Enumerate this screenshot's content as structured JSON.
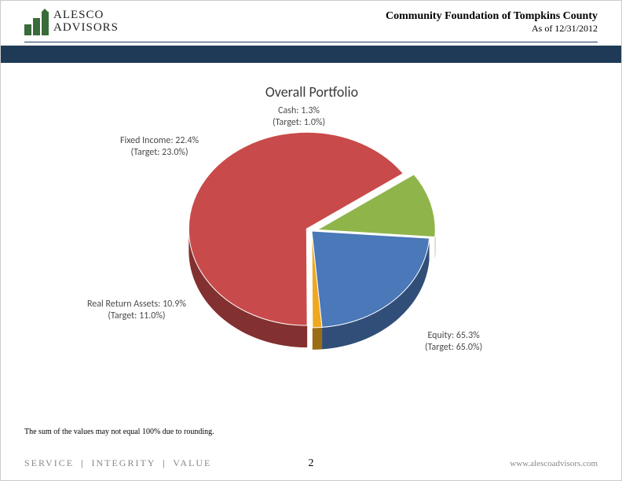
{
  "header": {
    "logo_line1": "ALESCO",
    "logo_line2": "ADVISORS",
    "org": "Community Foundation of Tompkins County",
    "asof": "As of 12/31/2012"
  },
  "chart": {
    "type": "pie",
    "title": "Overall Portfolio",
    "title_fontsize": 18,
    "title_color": "#3a3a3a",
    "label_fontsize": 12,
    "label_color": "#4a4a4a",
    "background_color": "#ffffff",
    "slices": [
      {
        "name": "Cash",
        "value": 1.3,
        "target": 1.0,
        "color": "#f0a820",
        "label_line1": "Cash: 1.3%",
        "label_line2": "(Target: 1.0%)"
      },
      {
        "name": "Equity",
        "value": 65.3,
        "target": 65.0,
        "color": "#c94a4a",
        "label_line1": "Equity: 65.3%",
        "label_line2": "(Target: 65.0%)"
      },
      {
        "name": "Real Return Assets",
        "value": 10.9,
        "target": 11.0,
        "color": "#8fb54a",
        "label_line1": "Real Return Assets: 10.9%",
        "label_line2": "(Target: 11.0%)"
      },
      {
        "name": "Fixed Income",
        "value": 22.4,
        "target": 23.0,
        "color": "#4a78b8",
        "label_line1": "Fixed Income: 22.4%",
        "label_line2": "(Target: 23.0%)"
      }
    ],
    "explode": [
      0,
      0.05,
      0.05,
      0
    ],
    "tilt_deg": 35,
    "start_angle_deg": 85,
    "radius": 150,
    "depth": 28
  },
  "footnote": "The sum of the values may not equal 100% due to rounding.",
  "footer": {
    "tagline_parts": [
      "SERVICE",
      "INTEGRITY",
      "VALUE"
    ],
    "tagline_sep": "|",
    "page_number": "2",
    "url": "www.alescoadvisors.com"
  },
  "colors": {
    "band": "#1f3a56",
    "logo_green": "#3a6b3a",
    "footer_grey": "#888888"
  }
}
